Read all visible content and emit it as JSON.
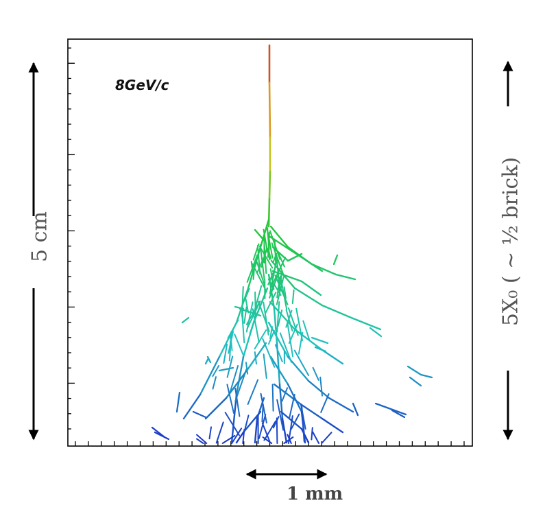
{
  "figure": {
    "energy_label": "8GeV/c",
    "left_scale_label": "5 cm",
    "right_scale_label": "5X₀ ( ~ ½ brick)",
    "bottom_scale_label": "1 mm"
  },
  "colors": {
    "frame": "#000000",
    "arrows": "#000000",
    "shower_top": "#c0392b",
    "shower_upper": "#e8c21a",
    "shower_mid": "#22c733",
    "shower_lower": "#1fc2c2",
    "shower_bottom": "#1a2fc8"
  },
  "icons": {
    "left_arrow": "double-headed-vertical-arrow",
    "right_arrow": "double-headed-vertical-arrow",
    "bottom_arrow": "double-headed-horizontal-arrow"
  }
}
